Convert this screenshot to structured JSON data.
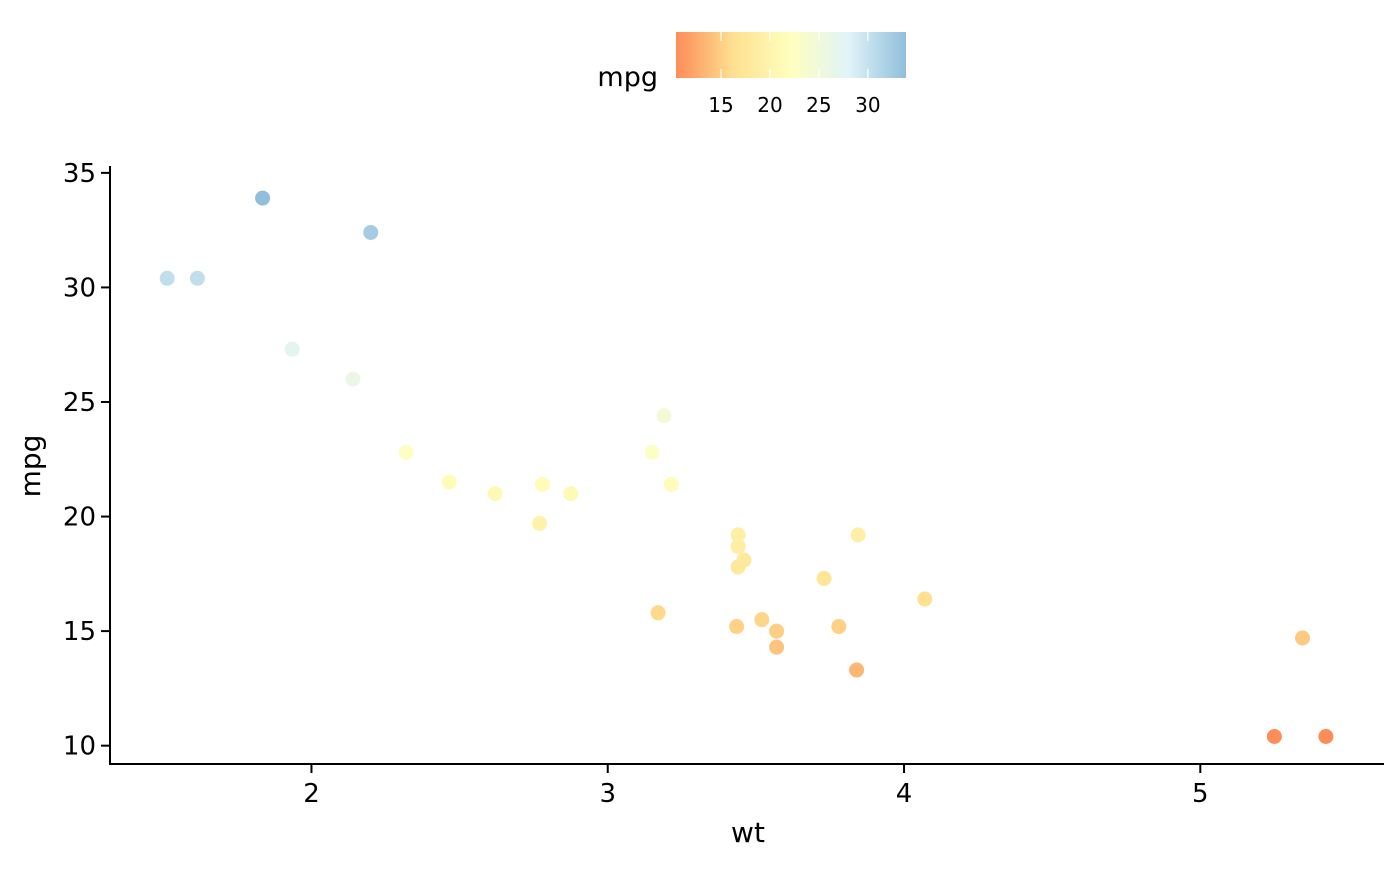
{
  "chart_data": {
    "type": "scatter",
    "xlabel": "wt",
    "ylabel": "mpg",
    "xlim": [
      1.32,
      5.62
    ],
    "ylim": [
      9.2,
      35.3
    ],
    "x_ticks": [
      2,
      3,
      4,
      5
    ],
    "y_ticks": [
      10,
      15,
      20,
      25,
      30,
      35
    ],
    "grid": false,
    "legend": {
      "title": "mpg",
      "position": "top",
      "type": "colorbar",
      "range": [
        10.4,
        33.9
      ],
      "ticks": [
        15,
        20,
        25,
        30
      ],
      "colors": [
        "#fc8d59",
        "#fee090",
        "#ffffbf",
        "#e0f3f8",
        "#91bfdb"
      ]
    },
    "points": [
      {
        "x": 2.62,
        "y": 21.0
      },
      {
        "x": 2.875,
        "y": 21.0
      },
      {
        "x": 2.32,
        "y": 22.8
      },
      {
        "x": 3.215,
        "y": 21.4
      },
      {
        "x": 3.44,
        "y": 18.7
      },
      {
        "x": 3.46,
        "y": 18.1
      },
      {
        "x": 3.57,
        "y": 14.3
      },
      {
        "x": 3.19,
        "y": 24.4
      },
      {
        "x": 3.15,
        "y": 22.8
      },
      {
        "x": 3.44,
        "y": 19.2
      },
      {
        "x": 3.44,
        "y": 17.8
      },
      {
        "x": 4.07,
        "y": 16.4
      },
      {
        "x": 3.73,
        "y": 17.3
      },
      {
        "x": 3.78,
        "y": 15.2
      },
      {
        "x": 5.25,
        "y": 10.4
      },
      {
        "x": 5.424,
        "y": 10.4
      },
      {
        "x": 5.345,
        "y": 14.7
      },
      {
        "x": 2.2,
        "y": 32.4
      },
      {
        "x": 1.615,
        "y": 30.4
      },
      {
        "x": 1.835,
        "y": 33.9
      },
      {
        "x": 2.465,
        "y": 21.5
      },
      {
        "x": 3.52,
        "y": 15.5
      },
      {
        "x": 3.435,
        "y": 15.2
      },
      {
        "x": 3.84,
        "y": 13.3
      },
      {
        "x": 3.845,
        "y": 19.2
      },
      {
        "x": 1.935,
        "y": 27.3
      },
      {
        "x": 2.14,
        "y": 26.0
      },
      {
        "x": 1.513,
        "y": 30.4
      },
      {
        "x": 3.17,
        "y": 15.8
      },
      {
        "x": 2.77,
        "y": 19.7
      },
      {
        "x": 3.57,
        "y": 15.0
      },
      {
        "x": 2.78,
        "y": 21.4
      }
    ]
  }
}
